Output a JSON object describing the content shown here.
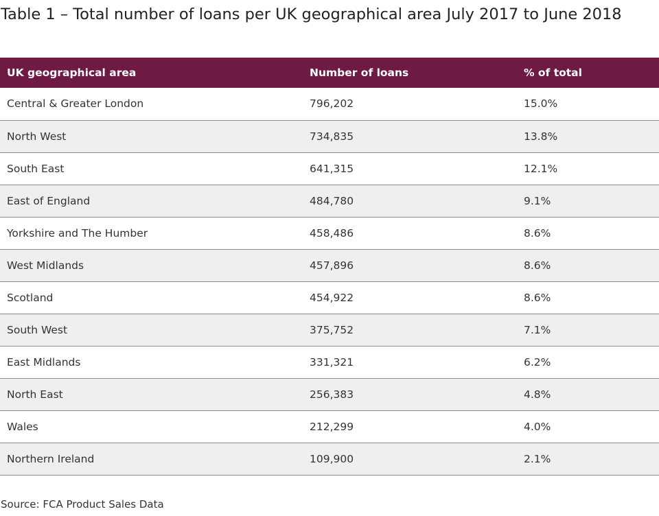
{
  "title": "Table 1 – Total number of loans per UK geographical area July 2017 to June 2018",
  "table": {
    "headers": [
      "UK geographical area",
      "Number of loans",
      "% of total"
    ],
    "rows": [
      [
        "Central & Greater London",
        "796,202",
        "15.0%"
      ],
      [
        "North West",
        "734,835",
        "13.8%"
      ],
      [
        "South East",
        "641,315",
        "12.1%"
      ],
      [
        "East of England",
        "484,780",
        "9.1%"
      ],
      [
        "Yorkshire and The Humber",
        "458,486",
        "8.6%"
      ],
      [
        "West Midlands",
        "457,896",
        "8.6%"
      ],
      [
        "Scotland",
        "454,922",
        "8.6%"
      ],
      [
        "South West",
        "375,752",
        "7.1%"
      ],
      [
        "East Midlands",
        "331,321",
        "6.2%"
      ],
      [
        "North East",
        "256,383",
        "4.8%"
      ],
      [
        "Wales",
        "212,299",
        "4.0%"
      ],
      [
        "Northern Ireland",
        "109,900",
        "2.1%"
      ]
    ]
  },
  "source": "Source: FCA Product Sales Data",
  "colors": {
    "header_background": "#6f1a42",
    "header_text": "#ffffff",
    "row_alt_background": "#efefef",
    "row_divider": "#8a8a8a"
  }
}
